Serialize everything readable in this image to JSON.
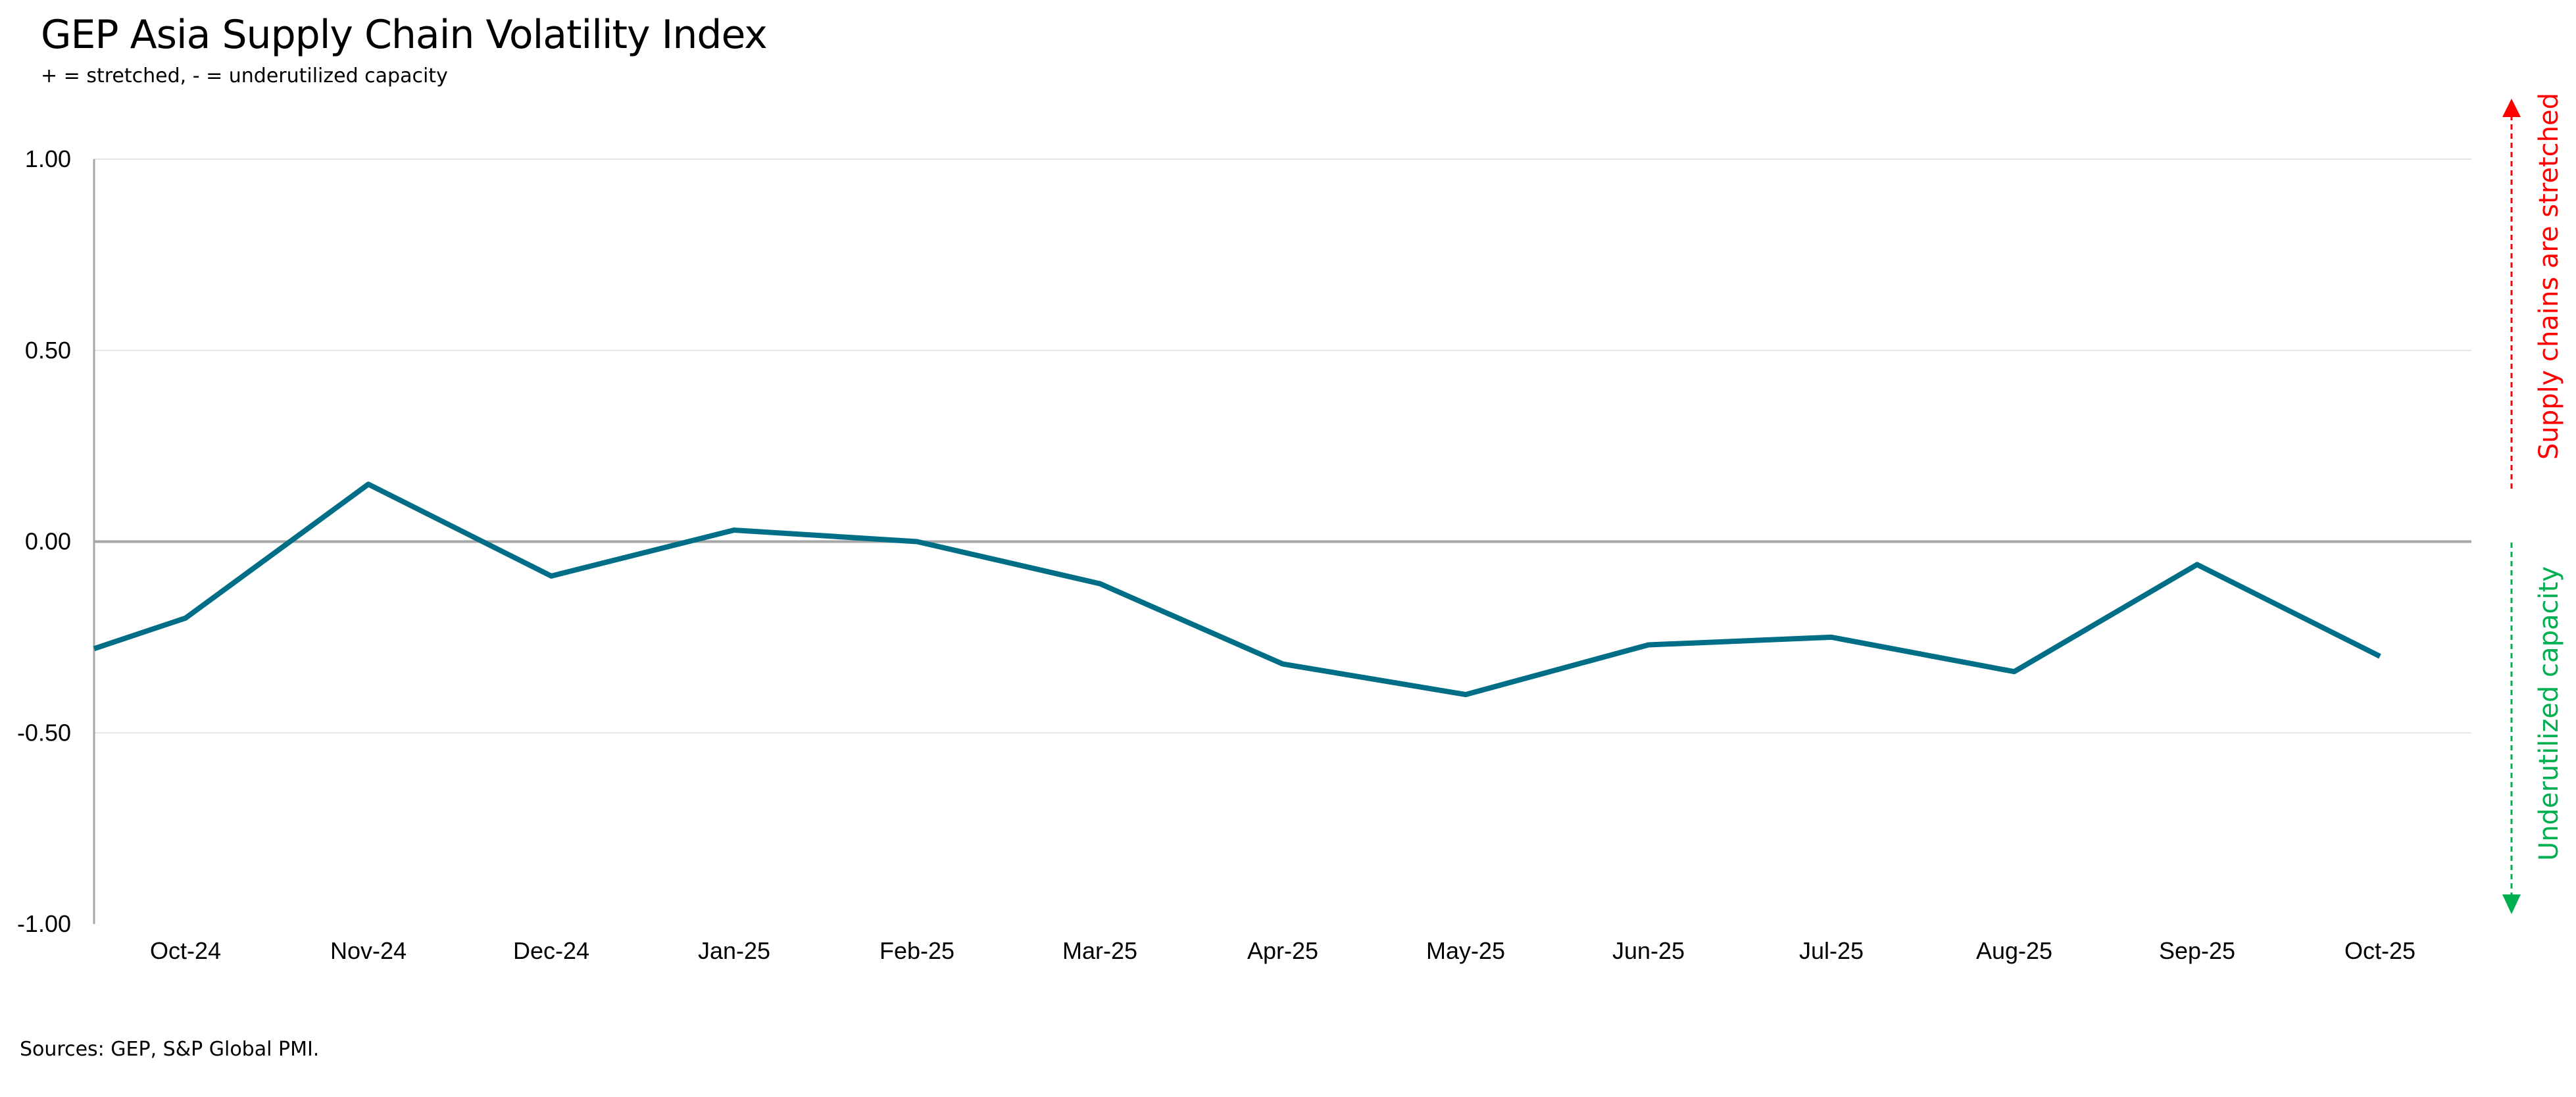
{
  "header": {
    "title": "GEP Asia Supply Chain Volatility Index",
    "subtitle": "+ = stretched, - = underutilized capacity"
  },
  "footer": {
    "source": "Sources: GEP, S&P Global PMI."
  },
  "annotations": {
    "up_label": "Supply chains are stretched",
    "down_label": "Underutilized capacity",
    "up_color": "#ff0000",
    "down_color": "#00b050"
  },
  "chart_data": {
    "type": "line",
    "title": "GEP Asia Supply Chain Volatility Index",
    "xlabel": "",
    "ylabel": "",
    "ylim": [
      -1.0,
      1.0
    ],
    "yticks": [
      "1.00",
      "0.50",
      "0.00",
      "-0.50",
      "-1.00"
    ],
    "ytick_values": [
      1.0,
      0.5,
      0.0,
      -0.5,
      -1.0
    ],
    "grid": true,
    "line_color": "#006e87",
    "line_start_at_axis": -0.28,
    "categories": [
      "Oct-24",
      "Nov-24",
      "Dec-24",
      "Jan-25",
      "Feb-25",
      "Mar-25",
      "Apr-25",
      "May-25",
      "Jun-25",
      "Jul-25",
      "Aug-25",
      "Sep-25",
      "Oct-25"
    ],
    "series": [
      {
        "name": "GEP Asia Supply Chain Volatility Index",
        "values": [
          -0.2,
          0.15,
          -0.09,
          0.03,
          0.0,
          -0.11,
          -0.32,
          -0.4,
          -0.27,
          -0.25,
          -0.34,
          -0.06,
          -0.3
        ]
      }
    ]
  }
}
